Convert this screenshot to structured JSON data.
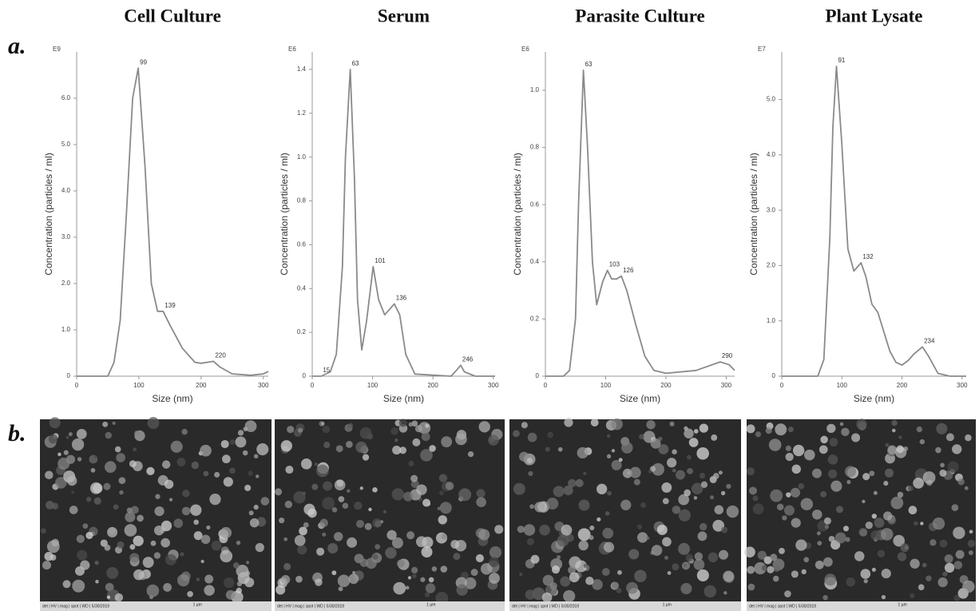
{
  "figure": {
    "panel_labels": [
      "a.",
      "b."
    ],
    "sem_images": [
      {
        "footer": "det | HV | mag | spot | WD | 5/30/2019",
        "scale": "1 µm"
      },
      {
        "footer": "det | HV | mag | spot | WD | 5/30/2019",
        "scale": "1 µm"
      },
      {
        "footer": "det | HV | mag | spot | WD | 5/30/2019",
        "scale": "1 µm"
      },
      {
        "footer": "det | HV | mag | spot | WD | 5/30/2019",
        "scale": "1 µm"
      }
    ]
  },
  "chart_data": [
    {
      "type": "line",
      "title": "Cell Culture",
      "x_label": "Size (nm)",
      "y_label": "Concentration (particles / ml)",
      "y_multiplier": "E9",
      "color": "#8a8a8a",
      "x": [
        0,
        50,
        60,
        70,
        80,
        90,
        99,
        110,
        120,
        130,
        139,
        150,
        170,
        190,
        200,
        210,
        220,
        230,
        250,
        280,
        300,
        308
      ],
      "values": [
        0,
        0,
        0.3,
        1.2,
        3.5,
        6.0,
        6.65,
        4.5,
        2.0,
        1.4,
        1.4,
        1.1,
        0.6,
        0.3,
        0.28,
        0.3,
        0.32,
        0.2,
        0.05,
        0.02,
        0.05,
        0.1
      ],
      "peaks": [
        {
          "x": 99,
          "y": 6.65
        },
        {
          "x": 139,
          "y": 1.4
        },
        {
          "x": 220,
          "y": 0.32
        }
      ],
      "xlim": [
        0,
        308
      ],
      "xticks": [
        0,
        100,
        200,
        300
      ],
      "ylim": [
        0,
        7
      ],
      "yticks": [
        0,
        {
          "value": 1,
          "label": "1.0"
        },
        {
          "value": 2,
          "label": "2.0"
        },
        {
          "value": 3,
          "label": "3.0"
        },
        {
          "value": 4,
          "label": "4.0"
        },
        {
          "value": 5,
          "label": "5.0"
        },
        {
          "value": 6,
          "label": "6.0"
        }
      ]
    },
    {
      "type": "line",
      "title": "Serum",
      "x_label": "Size (nm)",
      "y_label": "Concentration (particles / ml)",
      "y_multiplier": "E6",
      "color": "#8a8a8a",
      "x": [
        0,
        15,
        30,
        40,
        50,
        55,
        63,
        70,
        75,
        82,
        90,
        101,
        110,
        120,
        136,
        145,
        155,
        170,
        230,
        240,
        246,
        252,
        270,
        303
      ],
      "values": [
        0,
        0,
        0.02,
        0.1,
        0.5,
        1.0,
        1.4,
        0.9,
        0.35,
        0.12,
        0.25,
        0.5,
        0.35,
        0.28,
        0.33,
        0.28,
        0.1,
        0.01,
        0,
        0.03,
        0.05,
        0.02,
        0,
        0
      ],
      "peaks": [
        {
          "x": 15,
          "y": 0
        },
        {
          "x": 63,
          "y": 1.4
        },
        {
          "x": 101,
          "y": 0.5
        },
        {
          "x": 136,
          "y": 0.33
        },
        {
          "x": 246,
          "y": 0.05
        }
      ],
      "xlim": [
        0,
        303
      ],
      "xticks": [
        0,
        100,
        200,
        300
      ],
      "ylim": [
        0,
        1.48
      ],
      "yticks": [
        0,
        0.2,
        0.4,
        0.6,
        0.8,
        {
          "value": 1,
          "label": "1.0"
        },
        1.2,
        1.4
      ]
    },
    {
      "type": "line",
      "title": "Parasite Culture",
      "x_label": "Size (nm)",
      "y_label": "Concentration (particles / ml)",
      "y_multiplier": "E6",
      "color": "#8a8a8a",
      "x": [
        0,
        30,
        40,
        50,
        55,
        63,
        70,
        78,
        85,
        95,
        103,
        110,
        118,
        126,
        135,
        150,
        165,
        180,
        200,
        250,
        290,
        305,
        314
      ],
      "values": [
        0,
        0,
        0.02,
        0.2,
        0.6,
        1.07,
        0.8,
        0.4,
        0.25,
        0.33,
        0.37,
        0.34,
        0.34,
        0.35,
        0.3,
        0.18,
        0.07,
        0.02,
        0.01,
        0.02,
        0.05,
        0.04,
        0.02
      ],
      "peaks": [
        {
          "x": 63,
          "y": 1.07
        },
        {
          "x": 103,
          "y": 0.37
        },
        {
          "x": 126,
          "y": 0.35
        },
        {
          "x": 290,
          "y": 0.05
        }
      ],
      "xlim": [
        0,
        314
      ],
      "xticks": [
        0,
        100,
        200,
        300
      ],
      "ylim": [
        0,
        1.134
      ],
      "yticks": [
        0,
        0.2,
        0.4,
        0.6,
        0.8,
        {
          "value": 1,
          "label": "1.0"
        }
      ]
    },
    {
      "type": "line",
      "title": "Plant Lysate",
      "x_label": "Size (nm)",
      "y_label": "Concentration (particles / ml)",
      "y_multiplier": "E7",
      "color": "#8a8a8a",
      "x": [
        0,
        60,
        70,
        80,
        85,
        91,
        100,
        110,
        120,
        132,
        140,
        150,
        160,
        170,
        180,
        190,
        200,
        210,
        220,
        234,
        245,
        260,
        280,
        307
      ],
      "values": [
        0,
        0,
        0.3,
        2.5,
        4.5,
        5.6,
        4.2,
        2.3,
        1.9,
        2.05,
        1.8,
        1.3,
        1.15,
        0.8,
        0.45,
        0.25,
        0.2,
        0.28,
        0.4,
        0.53,
        0.35,
        0.05,
        0,
        0
      ],
      "peaks": [
        {
          "x": 91,
          "y": 5.6
        },
        {
          "x": 132,
          "y": 2.05
        },
        {
          "x": 234,
          "y": 0.53
        }
      ],
      "xlim": [
        0,
        307
      ],
      "xticks": [
        0,
        100,
        200,
        300
      ],
      "ylim": [
        0,
        5.86
      ],
      "yticks": [
        0,
        {
          "value": 1,
          "label": "1.0"
        },
        {
          "value": 2,
          "label": "2.0"
        },
        {
          "value": 3,
          "label": "3.0"
        },
        {
          "value": 4,
          "label": "4.0"
        },
        {
          "value": 5,
          "label": "5.0"
        }
      ]
    }
  ]
}
